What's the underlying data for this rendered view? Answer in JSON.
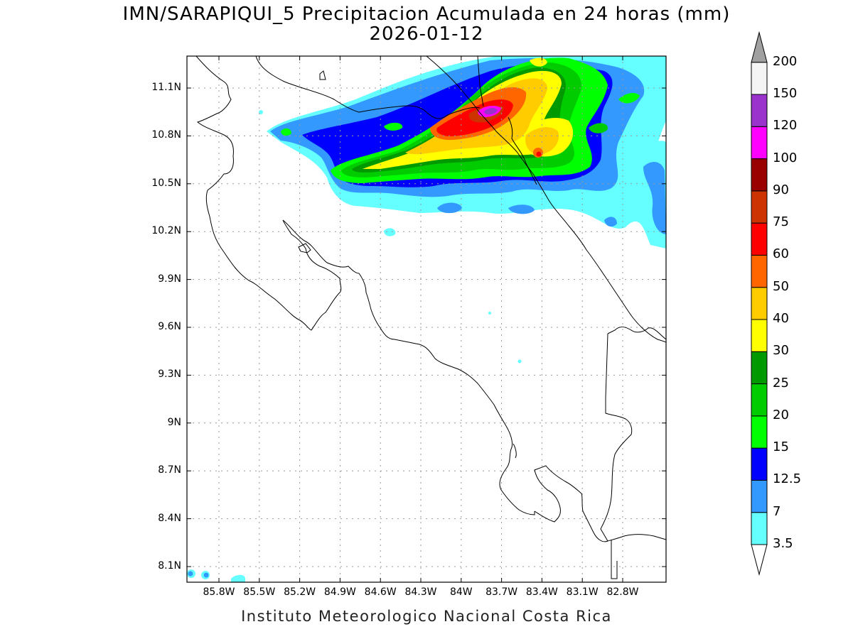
{
  "title": {
    "line1": "IMN/SARAPIQUI_5 Precipitacion Acumulada en 24 horas (mm)",
    "line2": "2026-01-12"
  },
  "footer": "Instituto Meteorologico Nacional Costa Rica",
  "axes": {
    "lat_ticks": [
      "11.1N",
      "10.8N",
      "10.5N",
      "10.2N",
      "9.9N",
      "9.6N",
      "9.3N",
      "9N",
      "8.7N",
      "8.4N",
      "8.1N"
    ],
    "lon_ticks": [
      "85.8W",
      "85.5W",
      "85.2W",
      "84.9W",
      "84.6W",
      "84.3W",
      "84W",
      "83.7W",
      "83.4W",
      "83.1W",
      "82.8W"
    ],
    "grid": "dotted"
  },
  "colorbar": {
    "levels": [
      "3.5",
      "7",
      "12.5",
      "15",
      "20",
      "25",
      "30",
      "40",
      "50",
      "60",
      "75",
      "90",
      "100",
      "120",
      "150",
      "200"
    ],
    "colors": [
      "#66ffff",
      "#3399ff",
      "#0000ff",
      "#00ff00",
      "#00cc00",
      "#009900",
      "#ffff00",
      "#ffcc00",
      "#ff6600",
      "#ff0000",
      "#cc3300",
      "#990000",
      "#ff00ff",
      "#9933cc",
      "#f5f5f5",
      "#a0a0a0"
    ]
  },
  "map": {
    "region": "Costa Rica",
    "variable": "Precipitacion acumulada 24h",
    "units": "mm"
  }
}
